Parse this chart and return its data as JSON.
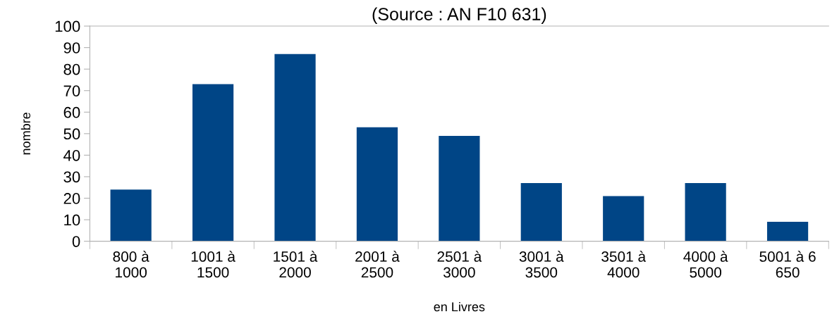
{
  "chart_data": {
    "type": "bar",
    "title": "(Source : AN F10 631)",
    "categories": [
      "800 à\n1000",
      "1001 à\n1500",
      "1501 à\n2000",
      "2001 à\n2500",
      "2501 à\n3000",
      "3001 à\n3500",
      "3501 à\n4000",
      "4000 à\n5000",
      "5001 à 6\n650"
    ],
    "values": [
      24,
      73,
      87,
      53,
      49,
      27,
      21,
      27,
      9
    ],
    "color": "#004586",
    "xlabel": "en Livres",
    "ylabel": "nombre",
    "ylim": [
      0,
      100
    ],
    "yticks": [
      0,
      10,
      20,
      30,
      40,
      50,
      60,
      70,
      80,
      90,
      100
    ],
    "grid": false,
    "legend": false
  }
}
